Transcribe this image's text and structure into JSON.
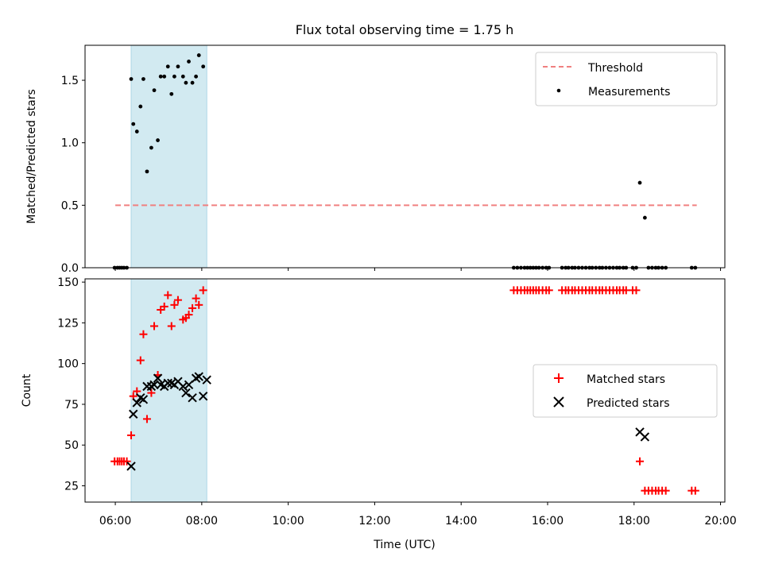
{
  "figure": {
    "title": "Flux total observing time = 1.75 h",
    "xlabel": "Time (UTC)",
    "xticks": [
      "06:00",
      "08:00",
      "10:00",
      "12:00",
      "14:00",
      "16:00",
      "18:00",
      "20:00"
    ],
    "xlim": [
      "05:18",
      "20:06"
    ]
  },
  "colors": {
    "threshold": "#f08080",
    "measurements": "#000000",
    "matched": "#ff0000",
    "predicted": "#000000",
    "span": "#add8e6"
  },
  "chart_data": [
    {
      "type": "scatter",
      "ylabel": "Matched/Predicted stars",
      "ylim": [
        0,
        1.78
      ],
      "yticks": [
        "0.0",
        "0.5",
        "1.0",
        "1.5"
      ],
      "shaded_span": [
        "06:22",
        "08:07"
      ],
      "legend_position": "upper right",
      "threshold": {
        "name": "Threshold",
        "value": 0.5,
        "x": [
          "06:00",
          "19:27"
        ]
      },
      "series": [
        {
          "name": "Measurements",
          "points": [
            [
              "05:59",
              0.0
            ],
            [
              "06:03",
              0.0
            ],
            [
              "06:06",
              0.0
            ],
            [
              "06:09",
              0.0
            ],
            [
              "06:12",
              0.0
            ],
            [
              "06:16",
              0.0
            ],
            [
              "06:22",
              1.51
            ],
            [
              "06:25",
              1.15
            ],
            [
              "06:30",
              1.09
            ],
            [
              "06:35",
              1.29
            ],
            [
              "06:39",
              1.51
            ],
            [
              "06:44",
              0.77
            ],
            [
              "06:50",
              0.96
            ],
            [
              "06:54",
              1.42
            ],
            [
              "06:59",
              1.02
            ],
            [
              "07:03",
              1.53
            ],
            [
              "07:08",
              1.53
            ],
            [
              "07:13",
              1.61
            ],
            [
              "07:18",
              1.39
            ],
            [
              "07:22",
              1.53
            ],
            [
              "07:27",
              1.61
            ],
            [
              "07:34",
              1.53
            ],
            [
              "07:38",
              1.48
            ],
            [
              "07:42",
              1.65
            ],
            [
              "07:47",
              1.48
            ],
            [
              "07:52",
              1.53
            ],
            [
              "07:56",
              1.7
            ],
            [
              "08:02",
              1.61
            ],
            [
              "15:13",
              0.0
            ],
            [
              "15:18",
              0.0
            ],
            [
              "15:23",
              0.0
            ],
            [
              "15:28",
              0.0
            ],
            [
              "15:32",
              0.0
            ],
            [
              "15:36",
              0.0
            ],
            [
              "15:40",
              0.0
            ],
            [
              "15:44",
              0.0
            ],
            [
              "15:48",
              0.0
            ],
            [
              "15:53",
              0.0
            ],
            [
              "15:58",
              0.0
            ],
            [
              "16:02",
              0.0
            ],
            [
              "16:20",
              0.0
            ],
            [
              "16:25",
              0.0
            ],
            [
              "16:29",
              0.0
            ],
            [
              "16:34",
              0.0
            ],
            [
              "16:38",
              0.0
            ],
            [
              "16:43",
              0.0
            ],
            [
              "16:48",
              0.0
            ],
            [
              "16:53",
              0.0
            ],
            [
              "16:58",
              0.0
            ],
            [
              "17:02",
              0.0
            ],
            [
              "17:07",
              0.0
            ],
            [
              "17:12",
              0.0
            ],
            [
              "17:16",
              0.0
            ],
            [
              "17:21",
              0.0
            ],
            [
              "17:26",
              0.0
            ],
            [
              "17:31",
              0.0
            ],
            [
              "17:36",
              0.0
            ],
            [
              "17:40",
              0.0
            ],
            [
              "17:45",
              0.0
            ],
            [
              "17:49",
              0.0
            ],
            [
              "17:58",
              0.0
            ],
            [
              "18:03",
              0.0
            ],
            [
              "18:08",
              0.68
            ],
            [
              "18:15",
              0.4
            ],
            [
              "18:20",
              0.0
            ],
            [
              "18:25",
              0.0
            ],
            [
              "18:30",
              0.0
            ],
            [
              "18:34",
              0.0
            ],
            [
              "18:39",
              0.0
            ],
            [
              "18:44",
              0.0
            ],
            [
              "19:20",
              0.0
            ],
            [
              "19:25",
              0.0
            ]
          ]
        }
      ]
    },
    {
      "type": "scatter",
      "ylabel": "Count",
      "ylim": [
        15,
        152
      ],
      "yticks": [
        "25",
        "50",
        "75",
        "100",
        "125",
        "150"
      ],
      "shaded_span": [
        "06:22",
        "08:07"
      ],
      "legend_position": "center right",
      "series": [
        {
          "name": "Matched stars",
          "points": [
            [
              "05:59",
              40
            ],
            [
              "06:03",
              40
            ],
            [
              "06:06",
              40
            ],
            [
              "06:09",
              40
            ],
            [
              "06:12",
              40
            ],
            [
              "06:16",
              40
            ],
            [
              "06:22",
              56
            ],
            [
              "06:25",
              80
            ],
            [
              "06:30",
              83
            ],
            [
              "06:35",
              102
            ],
            [
              "06:39",
              118
            ],
            [
              "06:44",
              66
            ],
            [
              "06:50",
              82
            ],
            [
              "06:54",
              123
            ],
            [
              "06:59",
              93
            ],
            [
              "07:03",
              133
            ],
            [
              "07:08",
              135
            ],
            [
              "07:13",
              142
            ],
            [
              "07:18",
              123
            ],
            [
              "07:22",
              136
            ],
            [
              "07:27",
              139
            ],
            [
              "07:34",
              127
            ],
            [
              "07:38",
              128
            ],
            [
              "07:42",
              130
            ],
            [
              "07:47",
              134
            ],
            [
              "07:52",
              140
            ],
            [
              "07:56",
              136
            ],
            [
              "08:02",
              145
            ],
            [
              "15:13",
              145
            ],
            [
              "15:18",
              145
            ],
            [
              "15:23",
              145
            ],
            [
              "15:28",
              145
            ],
            [
              "15:32",
              145
            ],
            [
              "15:36",
              145
            ],
            [
              "15:40",
              145
            ],
            [
              "15:44",
              145
            ],
            [
              "15:48",
              145
            ],
            [
              "15:53",
              145
            ],
            [
              "15:58",
              145
            ],
            [
              "16:02",
              145
            ],
            [
              "16:20",
              145
            ],
            [
              "16:25",
              145
            ],
            [
              "16:29",
              145
            ],
            [
              "16:34",
              145
            ],
            [
              "16:38",
              145
            ],
            [
              "16:43",
              145
            ],
            [
              "16:48",
              145
            ],
            [
              "16:53",
              145
            ],
            [
              "16:58",
              145
            ],
            [
              "17:02",
              145
            ],
            [
              "17:07",
              145
            ],
            [
              "17:12",
              145
            ],
            [
              "17:16",
              145
            ],
            [
              "17:21",
              145
            ],
            [
              "17:26",
              145
            ],
            [
              "17:31",
              145
            ],
            [
              "17:36",
              145
            ],
            [
              "17:40",
              145
            ],
            [
              "17:45",
              145
            ],
            [
              "17:49",
              145
            ],
            [
              "17:58",
              145
            ],
            [
              "18:03",
              145
            ],
            [
              "18:08",
              40
            ],
            [
              "18:15",
              22
            ],
            [
              "18:20",
              22
            ],
            [
              "18:25",
              22
            ],
            [
              "18:30",
              22
            ],
            [
              "18:34",
              22
            ],
            [
              "18:39",
              22
            ],
            [
              "18:44",
              22
            ],
            [
              "19:20",
              22
            ],
            [
              "19:25",
              22
            ]
          ]
        },
        {
          "name": "Predicted stars",
          "points": [
            [
              "06:22",
              37
            ],
            [
              "06:25",
              69
            ],
            [
              "06:30",
              76
            ],
            [
              "06:35",
              79
            ],
            [
              "06:39",
              78
            ],
            [
              "06:44",
              86
            ],
            [
              "06:50",
              86
            ],
            [
              "06:54",
              87
            ],
            [
              "06:59",
              91
            ],
            [
              "07:03",
              87
            ],
            [
              "07:08",
              86
            ],
            [
              "07:13",
              88
            ],
            [
              "07:18",
              88
            ],
            [
              "07:22",
              87
            ],
            [
              "07:27",
              89
            ],
            [
              "07:34",
              86
            ],
            [
              "07:38",
              82
            ],
            [
              "07:42",
              87
            ],
            [
              "07:47",
              79
            ],
            [
              "07:52",
              91
            ],
            [
              "07:56",
              92
            ],
            [
              "08:02",
              80
            ],
            [
              "08:07",
              90
            ],
            [
              "18:08",
              58
            ],
            [
              "18:15",
              55
            ]
          ]
        }
      ]
    }
  ]
}
